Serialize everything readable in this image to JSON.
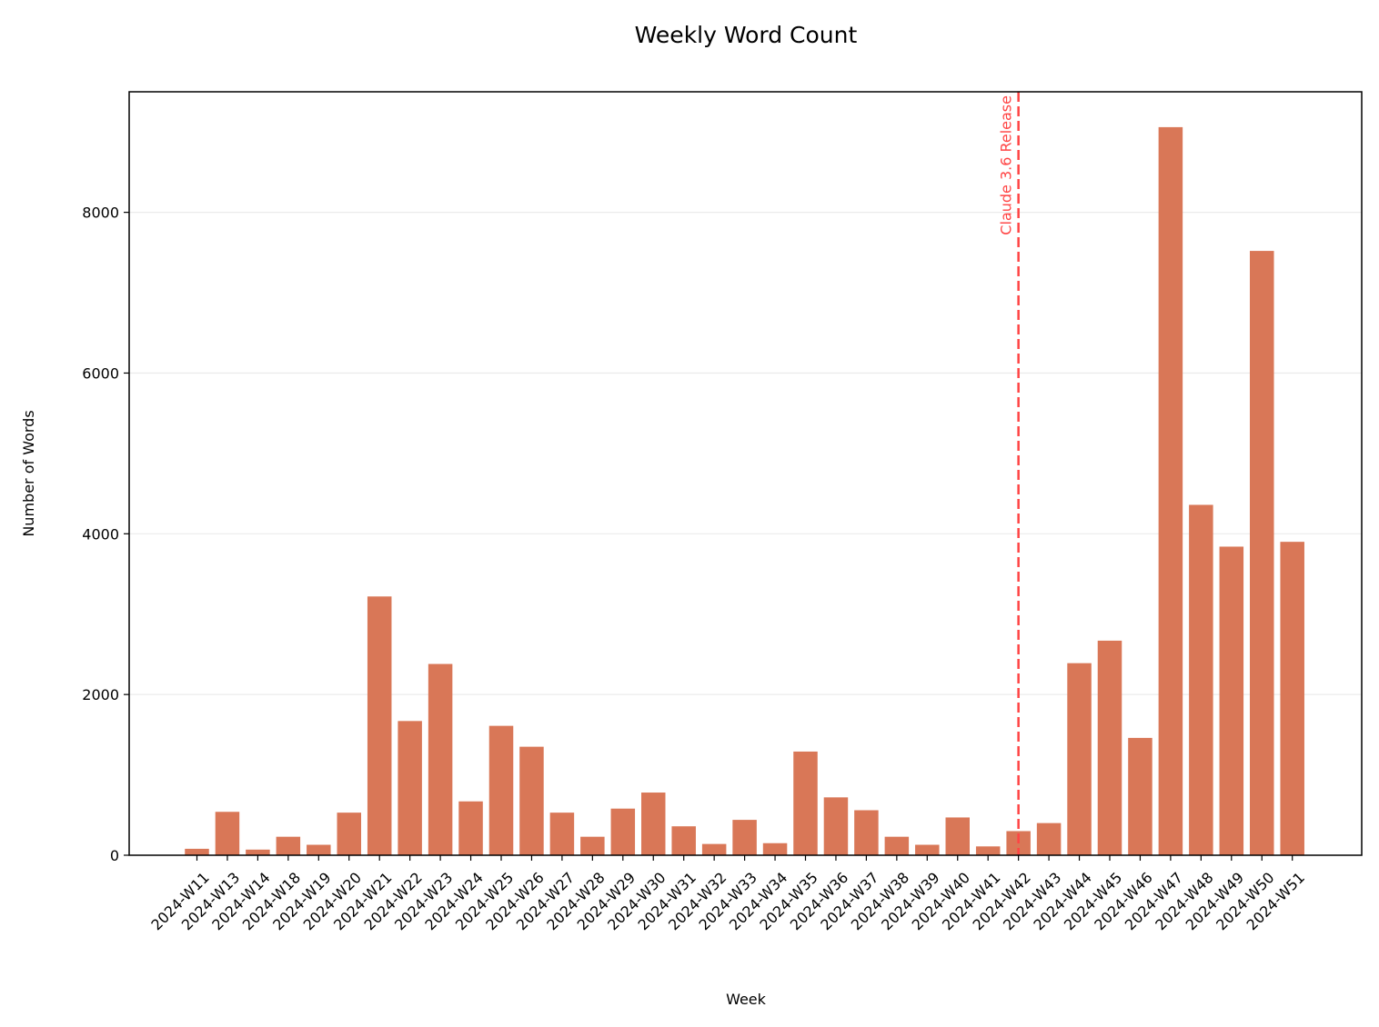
{
  "chart_data": {
    "type": "bar",
    "title": "Weekly Word Count",
    "xlabel": "Week",
    "ylabel": "Number of Words",
    "ylim": [
      0,
      9500
    ],
    "yticks": [
      0,
      2000,
      4000,
      6000,
      8000
    ],
    "grid": "horizontal",
    "bar_color": "#D97757",
    "categories": [
      "2024-W11",
      "2024-W13",
      "2024-W14",
      "2024-W18",
      "2024-W19",
      "2024-W20",
      "2024-W21",
      "2024-W22",
      "2024-W23",
      "2024-W24",
      "2024-W25",
      "2024-W26",
      "2024-W27",
      "2024-W28",
      "2024-W29",
      "2024-W30",
      "2024-W31",
      "2024-W32",
      "2024-W33",
      "2024-W34",
      "2024-W35",
      "2024-W36",
      "2024-W37",
      "2024-W38",
      "2024-W39",
      "2024-W40",
      "2024-W41",
      "2024-W42",
      "2024-W43",
      "2024-W44",
      "2024-W45",
      "2024-W46",
      "2024-W47",
      "2024-W48",
      "2024-W49",
      "2024-W50",
      "2024-W51"
    ],
    "values": [
      80,
      540,
      70,
      230,
      130,
      530,
      3220,
      1670,
      2380,
      670,
      1610,
      1350,
      530,
      230,
      580,
      780,
      360,
      140,
      440,
      150,
      1290,
      720,
      560,
      230,
      130,
      470,
      110,
      300,
      400,
      2390,
      2670,
      1460,
      9060,
      4360,
      3840,
      7520,
      3900
    ],
    "annotation": {
      "label": "Claude 3.6 Release",
      "category": "2024-W42",
      "color": "#FF4444"
    }
  }
}
